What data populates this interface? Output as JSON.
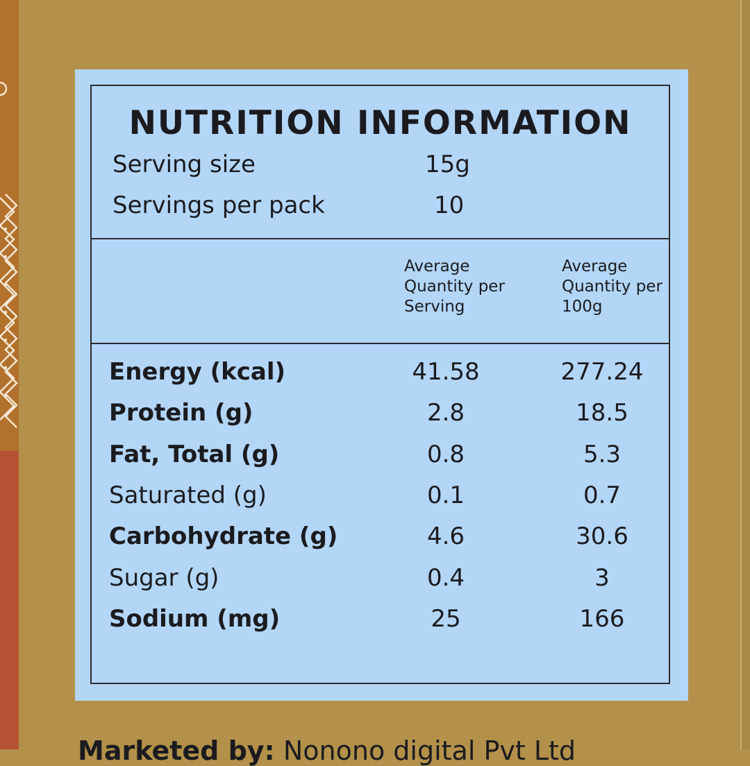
{
  "nutrition": {
    "title": "NUTRITION INFORMATION",
    "serving_size_label": "Serving size",
    "serving_size_value": "15g",
    "servings_per_pack_label": "Servings per pack",
    "servings_per_pack_value": "10",
    "col_per_serving": "Average Quantity per Serving",
    "col_per_100g": "Average Quantity per 100g",
    "rows": [
      {
        "label": "Energy (kcal)",
        "per_serving": "41.58",
        "per_100g": "277.24",
        "bold": true
      },
      {
        "label": "Protein (g)",
        "per_serving": "2.8",
        "per_100g": "18.5",
        "bold": true
      },
      {
        "label": "Fat, Total (g)",
        "per_serving": "0.8",
        "per_100g": "5.3",
        "bold": true
      },
      {
        "label": "Saturated (g)",
        "per_serving": "0.1",
        "per_100g": "0.7",
        "bold": false
      },
      {
        "label": "Carbohydrate (g)",
        "per_serving": "4.6",
        "per_100g": "30.6",
        "bold": true
      },
      {
        "label": "Sugar (g)",
        "per_serving": "0.4",
        "per_100g": "3",
        "bold": false
      },
      {
        "label": "Sodium (mg)",
        "per_serving": "25",
        "per_100g": "166",
        "bold": true
      }
    ]
  },
  "footer": {
    "marketed_by_label": "Marketed by:",
    "marketed_by_value": "Nonono digital Pvt Ltd"
  },
  "colors": {
    "background": "#b3914a",
    "panel": "#b3d6f7",
    "strip_top": "#b2712d",
    "strip_bottom": "#b55334"
  }
}
